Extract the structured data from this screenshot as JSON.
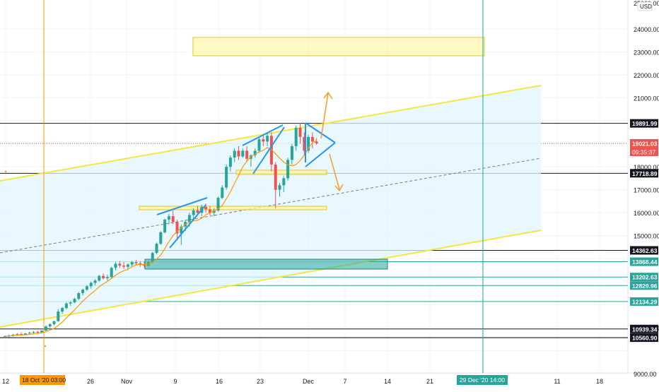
{
  "chart_data": {
    "type": "candlestick",
    "symbol_currency": "USD",
    "top_label": "25000.00",
    "price_axis": {
      "ticks": [
        "24000.00",
        "23000.00",
        "22000.00",
        "21000.00",
        "18000.00",
        "17000.00",
        "16000.00",
        "15000.00",
        "11000.00",
        "9000.00"
      ],
      "tick_values": [
        24000,
        23000,
        22000,
        21000,
        18000,
        17000,
        16000,
        15000,
        11000,
        9000
      ],
      "ylim": [
        8600,
        25200
      ]
    },
    "time_axis": {
      "ticks": [
        "12",
        "26",
        "Nov",
        "9",
        "16",
        "23",
        "Dec",
        "7",
        "14",
        "21",
        "11",
        "18"
      ]
    },
    "price_levels": [
      {
        "label": "19891.99",
        "value": 19891.99,
        "color": "#131722",
        "line": "solid"
      },
      {
        "label": "19021.03",
        "value": 19021.03,
        "color": "#ef5350",
        "line": "dotted",
        "sub": "09:35:37"
      },
      {
        "label": "17718.89",
        "value": 17718.89,
        "color": "#131722",
        "line": "solid"
      },
      {
        "label": "14362.63",
        "value": 14362.63,
        "color": "#131722",
        "line": "solid"
      },
      {
        "label": "13868.44",
        "value": 13868.44,
        "color": "#26a69a",
        "line": "solid"
      },
      {
        "label": "13202.63",
        "value": 13202.63,
        "color": "#26a69a",
        "line": "solid"
      },
      {
        "label": "12829.96",
        "value": 12829.96,
        "color": "#26a69a",
        "line": "solid"
      },
      {
        "label": "12134.29",
        "value": 12134.29,
        "color": "#26a69a",
        "line": "solid"
      },
      {
        "label": "10939.34",
        "value": 10939.34,
        "color": "#131722",
        "line": "solid"
      },
      {
        "label": "10563.57",
        "value": 10563.57,
        "color": "#131722",
        "line": "solid"
      },
      {
        "label": "10560.90",
        "value": 10560.9,
        "color": "#131722",
        "line": "solid"
      }
    ],
    "time_markers": [
      {
        "label": "18 Oct '20   03:00",
        "color": "#ff9800"
      },
      {
        "label": "29 Dec '20   14:00",
        "color": "#26a69a"
      }
    ],
    "colors": {
      "up": "#26a69a",
      "down": "#ef5350",
      "ma": "#ff9800",
      "channel": "#f5e642",
      "channel_fill": "#e1f5fe",
      "pattern": "#2196f3",
      "zone": "#fff59d"
    },
    "candles": [
      [
        10600,
        10660,
        10540,
        10620
      ],
      [
        10620,
        10700,
        10580,
        10650
      ],
      [
        10650,
        10720,
        10610,
        10690
      ],
      [
        10690,
        10760,
        10640,
        10720
      ],
      [
        10720,
        10790,
        10670,
        10700
      ],
      [
        10700,
        10770,
        10660,
        10750
      ],
      [
        10750,
        10820,
        10700,
        10780
      ],
      [
        10780,
        10850,
        10730,
        10810
      ],
      [
        10810,
        10870,
        10760,
        10790
      ],
      [
        10790,
        10880,
        10770,
        10870
      ],
      [
        10870,
        11100,
        10850,
        11050
      ],
      [
        11050,
        11200,
        10980,
        11150
      ],
      [
        11150,
        11300,
        11100,
        11280
      ],
      [
        11280,
        11800,
        11250,
        11700
      ],
      [
        11700,
        11900,
        11600,
        11850
      ],
      [
        11850,
        12100,
        11800,
        12050
      ],
      [
        12050,
        12150,
        11950,
        12100
      ],
      [
        12100,
        12300,
        12050,
        12250
      ],
      [
        12250,
        12550,
        12200,
        12500
      ],
      [
        12500,
        12700,
        12400,
        12650
      ],
      [
        12650,
        12850,
        12600,
        12800
      ],
      [
        12800,
        13000,
        12700,
        12950
      ],
      [
        12950,
        13100,
        12850,
        13050
      ],
      [
        13050,
        13300,
        13000,
        13250
      ],
      [
        13250,
        13350,
        13100,
        13150
      ],
      [
        13150,
        13300,
        13050,
        13200
      ],
      [
        13200,
        13650,
        13150,
        13600
      ],
      [
        13600,
        13850,
        13500,
        13780
      ],
      [
        13780,
        13900,
        13600,
        13700
      ],
      [
        13700,
        13850,
        13550,
        13650
      ],
      [
        13650,
        13800,
        13500,
        13750
      ],
      [
        13750,
        13900,
        13650,
        13850
      ],
      [
        13850,
        13950,
        13700,
        13800
      ],
      [
        13800,
        13900,
        13650,
        13750
      ],
      [
        13750,
        13880,
        13600,
        13700
      ],
      [
        13700,
        13900,
        13650,
        13850
      ],
      [
        13850,
        14300,
        13800,
        14250
      ],
      [
        14250,
        14700,
        14200,
        14650
      ],
      [
        14650,
        15200,
        14600,
        15150
      ],
      [
        15150,
        15750,
        15100,
        15700
      ],
      [
        15700,
        15950,
        15500,
        15850
      ],
      [
        15850,
        16100,
        15500,
        15600
      ],
      [
        15600,
        15700,
        14800,
        15100
      ],
      [
        15100,
        15500,
        14600,
        15400
      ],
      [
        15400,
        15700,
        15200,
        15600
      ],
      [
        15600,
        16000,
        15400,
        15900
      ],
      [
        15900,
        16200,
        15700,
        16100
      ],
      [
        16100,
        16300,
        15900,
        16000
      ],
      [
        16000,
        16350,
        15850,
        16250
      ],
      [
        16250,
        16400,
        16000,
        16150
      ],
      [
        16150,
        16300,
        15900,
        16000
      ],
      [
        16000,
        16200,
        15850,
        16100
      ],
      [
        16100,
        16700,
        16050,
        16650
      ],
      [
        16650,
        17200,
        16600,
        17100
      ],
      [
        17100,
        18100,
        17000,
        18000
      ],
      [
        18000,
        18500,
        17800,
        18400
      ],
      [
        18400,
        18800,
        18200,
        18700
      ],
      [
        18700,
        18900,
        18300,
        18450
      ],
      [
        18450,
        18800,
        18400,
        18700
      ],
      [
        18700,
        18900,
        18200,
        18350
      ],
      [
        18350,
        18550,
        18000,
        18500
      ],
      [
        18500,
        18800,
        18400,
        18700
      ],
      [
        18700,
        19300,
        18600,
        19200
      ],
      [
        19200,
        19400,
        18900,
        19100
      ],
      [
        19100,
        19480,
        18900,
        19350
      ],
      [
        19350,
        19500,
        17800,
        18100
      ],
      [
        18100,
        18200,
        16200,
        17000
      ],
      [
        17000,
        17300,
        16700,
        17200
      ],
      [
        17200,
        17600,
        16900,
        17500
      ],
      [
        17500,
        18400,
        17400,
        18300
      ],
      [
        18300,
        19000,
        18100,
        18900
      ],
      [
        18900,
        19800,
        18700,
        19700
      ],
      [
        19700,
        19900,
        19000,
        19300
      ],
      [
        19300,
        19500,
        18500,
        18700
      ],
      [
        18700,
        19400,
        18600,
        19300
      ],
      [
        19300,
        19500,
        18800,
        19100
      ],
      [
        19100,
        19250,
        18950,
        19021
      ]
    ]
  }
}
